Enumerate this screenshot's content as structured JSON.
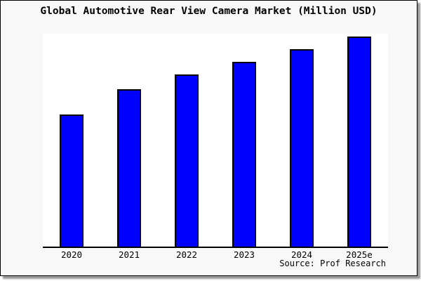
{
  "chart_data": {
    "type": "bar",
    "title": "Global Automotive Rear View Camera Market (Million USD)",
    "categories": [
      "2020",
      "2021",
      "2022",
      "2023",
      "2024",
      "2025e"
    ],
    "values": [
      63,
      75,
      82,
      88,
      94,
      100
    ],
    "value_scale": "relative estimate from bar heights; no y-axis labels or gridlines are shown, tallest bar (2025e) = 100",
    "xlabel": "",
    "ylabel": "",
    "ylim": [
      0,
      101.5
    ],
    "grid": false,
    "legend": false,
    "source_note": "Source: Prof Research",
    "colors": {
      "bar_fill": "#0000FF",
      "bar_border": "#000000",
      "plot_background": "#FFFFFF",
      "figure_background": "#F8F8F8",
      "frame_border": "#000000",
      "text": "#000000"
    }
  }
}
